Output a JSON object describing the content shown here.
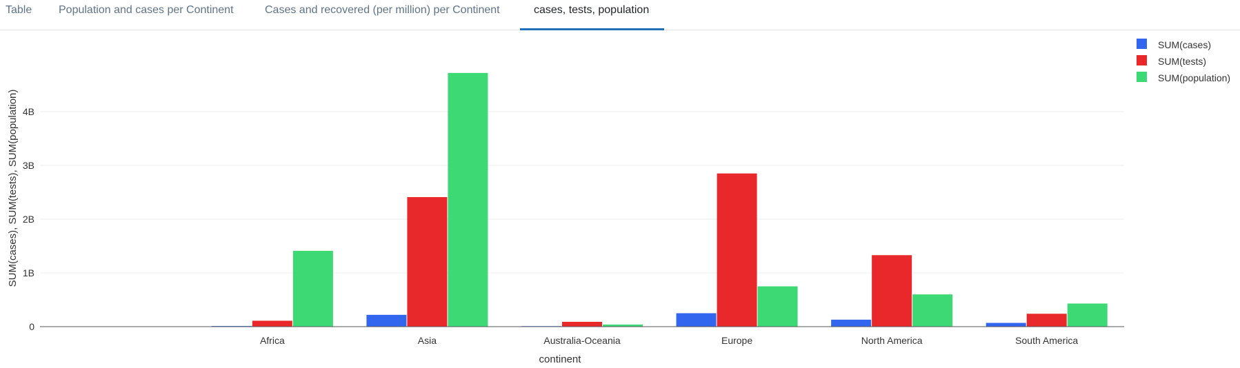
{
  "tabs": [
    {
      "label": "Table",
      "active": false
    },
    {
      "label": "Population and cases per Continent",
      "active": false
    },
    {
      "label": "Cases and recovered (per million) per Continent",
      "active": false
    },
    {
      "label": "cases, tests, population",
      "active": true
    }
  ],
  "chart_data": {
    "type": "bar",
    "categories": [
      "",
      "Africa",
      "Asia",
      "Australia-Oceania",
      "Europe",
      "North America",
      "South America"
    ],
    "series": [
      {
        "name": "SUM(cases)",
        "color": "#3366ee",
        "values": [
          0,
          0.012,
          0.22,
          0.01,
          0.25,
          0.13,
          0.07
        ]
      },
      {
        "name": "SUM(tests)",
        "color": "#e8282b",
        "values": [
          0,
          0.11,
          2.41,
          0.09,
          2.85,
          1.33,
          0.24
        ]
      },
      {
        "name": "SUM(population)",
        "color": "#3dd974",
        "values": [
          0,
          1.41,
          4.72,
          0.04,
          0.75,
          0.6,
          0.43
        ]
      }
    ],
    "value_unit": "billions",
    "y_ticks": [
      {
        "value": 0,
        "label": "0"
      },
      {
        "value": 1,
        "label": "1B"
      },
      {
        "value": 2,
        "label": "2B"
      },
      {
        "value": 3,
        "label": "3B"
      },
      {
        "value": 4,
        "label": "4B"
      }
    ],
    "ylim": [
      0,
      5
    ],
    "xlabel": "continent",
    "ylabel": "SUM(cases), SUM(tests), SUM(population)",
    "legend_position": "top-right",
    "grid": true
  }
}
